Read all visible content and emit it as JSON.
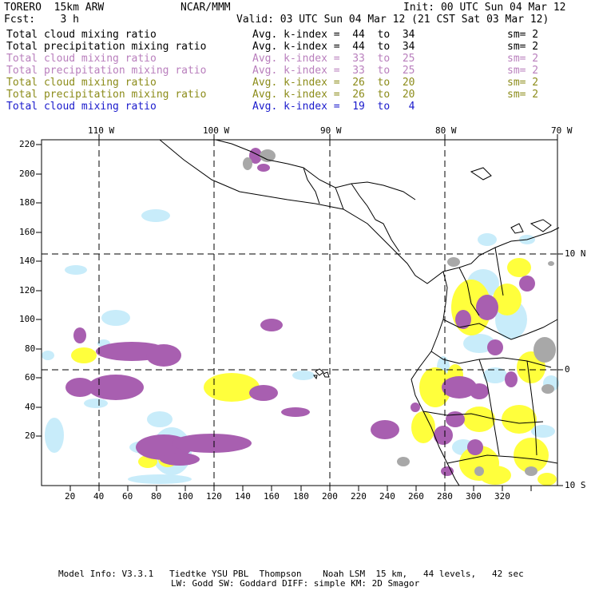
{
  "header": {
    "model": "TORERO  15km ARW",
    "org": "NCAR/MMM",
    "init": "Init: 00 UTC Sun 04 Mar 12",
    "fcst": "Fcst:    3 h",
    "valid": "Valid: 03 UTC Sun 04 Mar 12 (21 CST Sat 03 Mar 12)"
  },
  "legend": [
    {
      "label": "Total cloud mixing ratio",
      "kindex": "Avg. k-index =  44  to  34",
      "sm": "sm= 2",
      "color": "#000000"
    },
    {
      "label": "Total precipitation mixing ratio",
      "kindex": "Avg. k-index =  44  to  34",
      "sm": "sm= 2",
      "color": "#000000"
    },
    {
      "label": "Total cloud mixing ratio",
      "kindex": "Avg. k-index =  33  to  25",
      "sm": "sm= 2",
      "color": "#b97fbd"
    },
    {
      "label": "Total precipitation mixing ratio",
      "kindex": "Avg. k-index =  33  to  25",
      "sm": "sm= 2",
      "color": "#b97fbd"
    },
    {
      "label": "Total cloud mixing ratio",
      "kindex": "Avg. k-index =  26  to  20",
      "sm": "sm= 2",
      "color": "#8c8c1a"
    },
    {
      "label": "Total precipitation mixing ratio",
      "kindex": "Avg. k-index =  26  to  20",
      "sm": "sm= 2",
      "color": "#8c8c1a"
    },
    {
      "label": "Total cloud mixing ratio",
      "kindex": "Avg. k-index =  19  to   4",
      "sm": "",
      "color": "#1a1acc"
    }
  ],
  "map": {
    "lon_labels": [
      "110 W",
      "100 W",
      "90 W",
      "80 W",
      "70 W"
    ],
    "lat_labels": [
      "10 N",
      "0",
      "10 S"
    ],
    "y_ticks": [
      "220",
      "200",
      "180",
      "160",
      "140",
      "120",
      "100",
      "80",
      "60",
      "40",
      "20"
    ],
    "x_ticks": [
      "20",
      "40",
      "60",
      "80",
      "100",
      "120",
      "140",
      "160",
      "180",
      "200",
      "220",
      "240",
      "260",
      "280",
      "300",
      "320"
    ],
    "colors": {
      "gray": "#a8a8a8",
      "purple": "#a85fb0",
      "yellow": "#ffff3c",
      "lightblue": "#c8ecfa"
    }
  },
  "footer": {
    "line1": "Model Info: V3.3.1   Tiedtke YSU PBL  Thompson    Noah LSM  15 km,   44 levels,   42 sec",
    "line2": "LW: Godd SW: Goddard DIFF: simple KM: 2D Smagor"
  }
}
